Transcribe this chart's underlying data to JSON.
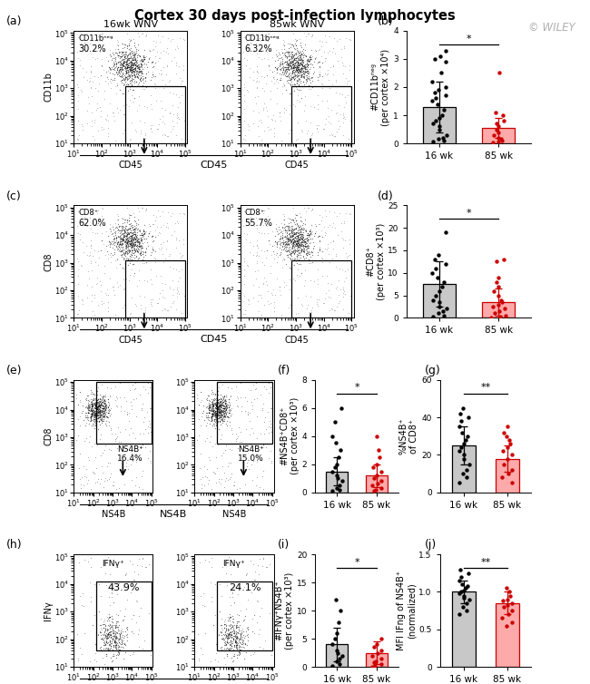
{
  "title": "Cortex 30 days post-infection lymphocytes",
  "wiley_text": "© WILEY",
  "panel_b_ylabel": "#CD11bⁿᵉᵍ\n(per cortex ×10⁴)",
  "panel_b_ylim": [
    0,
    4
  ],
  "panel_b_yticks": [
    0,
    1,
    2,
    3,
    4
  ],
  "panel_b_bar16": 1.3,
  "panel_b_err16": 0.9,
  "panel_b_bar85": 0.55,
  "panel_b_err85": 0.35,
  "panel_b_sig": "*",
  "panel_b_dots16": [
    0.05,
    0.1,
    0.15,
    0.2,
    0.3,
    0.5,
    0.6,
    0.7,
    0.8,
    0.9,
    1.0,
    1.2,
    1.4,
    1.5,
    1.6,
    1.7,
    1.8,
    1.9,
    2.0,
    2.2,
    2.5,
    2.9,
    3.0,
    3.1,
    3.3
  ],
  "panel_b_dots85": [
    0.02,
    0.05,
    0.1,
    0.15,
    0.2,
    0.3,
    0.4,
    0.5,
    0.6,
    0.7,
    0.8,
    1.0,
    1.1,
    2.5
  ],
  "panel_d_ylabel": "#CD8⁺\n(per cortex ×10³)",
  "panel_d_ylim": [
    0,
    25
  ],
  "panel_d_yticks": [
    0,
    5,
    10,
    15,
    20,
    25
  ],
  "panel_d_bar16": 7.5,
  "panel_d_err16": 5.0,
  "panel_d_bar85": 3.5,
  "panel_d_err85": 3.0,
  "panel_d_sig": "*",
  "panel_d_dots16": [
    0.2,
    0.5,
    1.0,
    1.5,
    2.0,
    2.5,
    3.5,
    4.0,
    5.0,
    6.0,
    7.0,
    8.0,
    9.0,
    10.0,
    11.0,
    12.0,
    13.0,
    14.0,
    19.0
  ],
  "panel_d_dots85": [
    0.1,
    0.2,
    0.5,
    1.0,
    1.5,
    2.0,
    2.5,
    3.0,
    3.5,
    4.0,
    5.0,
    6.0,
    7.0,
    8.0,
    9.0,
    12.5,
    13.0
  ],
  "panel_f_ylabel": "#NS4B⁺CD8⁺\n(per cortex ×10³)",
  "panel_f_ylim": [
    0,
    8
  ],
  "panel_f_yticks": [
    0,
    2,
    4,
    6,
    8
  ],
  "panel_f_bar16": 1.5,
  "panel_f_err16": 1.0,
  "panel_f_bar85": 1.2,
  "panel_f_err85": 0.8,
  "panel_f_sig": "*",
  "panel_f_dots16": [
    0.1,
    0.2,
    0.3,
    0.5,
    0.8,
    1.0,
    1.2,
    1.5,
    1.8,
    2.0,
    2.5,
    3.0,
    3.5,
    4.0,
    5.0,
    6.0
  ],
  "panel_f_dots85": [
    0.1,
    0.2,
    0.3,
    0.5,
    0.6,
    0.8,
    1.0,
    1.2,
    1.5,
    1.8,
    2.0,
    2.5,
    3.0,
    4.0
  ],
  "panel_g_ylabel": "%NS4B⁺\nof CD8⁺",
  "panel_g_ylim": [
    0,
    60
  ],
  "panel_g_yticks": [
    0,
    20,
    40,
    60
  ],
  "panel_g_bar16": 25.0,
  "panel_g_err16": 10.0,
  "panel_g_bar85": 18.0,
  "panel_g_err85": 7.0,
  "panel_g_sig": "**",
  "panel_g_dots16": [
    5,
    8,
    10,
    12,
    15,
    18,
    20,
    22,
    24,
    26,
    28,
    30,
    32,
    35,
    38,
    40,
    42,
    45
  ],
  "panel_g_dots85": [
    5,
    8,
    10,
    12,
    15,
    18,
    20,
    22,
    24,
    26,
    28,
    30,
    32,
    35
  ],
  "panel_i_ylabel": "#IFNγ⁺NS4B⁺\n(per cortex ×10³)",
  "panel_i_ylim": [
    0,
    20
  ],
  "panel_i_yticks": [
    0,
    5,
    10,
    15,
    20
  ],
  "panel_i_bar16": 4.0,
  "panel_i_err16": 3.0,
  "panel_i_bar85": 2.5,
  "panel_i_err85": 2.0,
  "panel_i_sig": "*",
  "panel_i_dots16": [
    0.2,
    0.5,
    1.0,
    1.5,
    2.0,
    2.5,
    3.0,
    4.0,
    5.0,
    6.0,
    8.0,
    10.0,
    12.0
  ],
  "panel_i_dots85": [
    0.1,
    0.2,
    0.5,
    0.8,
    1.0,
    1.5,
    2.0,
    2.5,
    3.0,
    3.5,
    4.0,
    5.0
  ],
  "panel_j_ylabel": "MFI IFng of NS4B⁺\n(normalized)",
  "panel_j_ylim": [
    0,
    1.5
  ],
  "panel_j_yticks": [
    0,
    0.5,
    1.0,
    1.5
  ],
  "panel_j_bar16": 1.0,
  "panel_j_err16": 0.15,
  "panel_j_bar85": 0.85,
  "panel_j_err85": 0.15,
  "panel_j_sig": "**",
  "panel_j_dots16": [
    0.7,
    0.75,
    0.8,
    0.85,
    0.9,
    0.92,
    0.95,
    0.98,
    1.0,
    1.02,
    1.05,
    1.08,
    1.1,
    1.15,
    1.2,
    1.25,
    1.3
  ],
  "panel_j_dots85": [
    0.55,
    0.6,
    0.65,
    0.7,
    0.75,
    0.8,
    0.82,
    0.85,
    0.88,
    0.9,
    0.95,
    1.0,
    1.05
  ],
  "color_16wk": "#000000",
  "color_85wk": "#cc0000",
  "bar_face_16wk": "#c8c8c8",
  "bar_face_85wk": "#ffaaaa"
}
